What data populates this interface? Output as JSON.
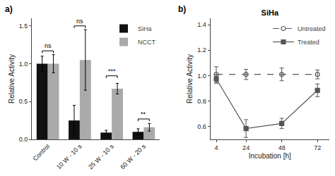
{
  "chart_data": [
    {
      "type": "bar",
      "label": "a)",
      "categories": [
        "Control",
        "10 W - 10 s",
        "25 W - 10 s",
        "60 W - 20 s"
      ],
      "series": [
        {
          "name": "SiHa",
          "color": "#111111",
          "values": [
            1.0,
            0.25,
            0.09,
            0.1
          ],
          "errors": [
            0.1,
            0.2,
            0.03,
            0.04
          ]
        },
        {
          "name": "NCCT",
          "color": "#aaaaaa",
          "values": [
            1.0,
            1.05,
            0.67,
            0.16
          ],
          "errors": [
            0.12,
            0.4,
            0.07,
            0.05
          ]
        }
      ],
      "ylabel": "Relative Activity",
      "ylim": [
        0,
        1.6
      ],
      "yticks": [
        {
          "value": 0.0,
          "label": "0.0"
        },
        0.5,
        {
          "value": 1.0,
          "label": "1.0"
        },
        1.5
      ],
      "grid": false,
      "legend": "upper right",
      "annotations": [
        {
          "category": "Control",
          "y": 1.17,
          "text": "ns"
        },
        {
          "category": "10 W - 10 s",
          "y": 1.5,
          "text": "ns"
        },
        {
          "category": "25 W - 10 s",
          "y": 0.84,
          "text": "***"
        },
        {
          "category": "60 W - 20 s",
          "y": 0.27,
          "text": "**"
        }
      ]
    },
    {
      "type": "line",
      "title": "SiHa",
      "label": "b)",
      "x": [
        4,
        24,
        48,
        72
      ],
      "series": [
        {
          "name": "Untreated",
          "color": "#555555",
          "marker": "circle-open",
          "line_style": "dashed",
          "values": [
            1.01,
            1.01,
            1.01,
            1.01
          ],
          "errors": [
            0.06,
            0.04,
            0.05,
            0.035
          ]
        },
        {
          "name": "Treated",
          "color": "#555555",
          "marker": "square",
          "line_style": "solid",
          "values": [
            0.975,
            0.585,
            0.625,
            0.885
          ],
          "errors": [
            0.035,
            0.07,
            0.04,
            0.05
          ]
        }
      ],
      "xlabel": "Incubation [h]",
      "ylabel": "Relative Activity",
      "xlim": [
        0,
        80
      ],
      "xticks": [
        4,
        24,
        48,
        72
      ],
      "ylim": [
        0.5,
        1.45
      ],
      "yticks": [
        0.6,
        0.8,
        {
          "value": 1.0,
          "label": "1.0"
        },
        1.2,
        1.4
      ],
      "grid": false,
      "legend": "upper right"
    }
  ]
}
